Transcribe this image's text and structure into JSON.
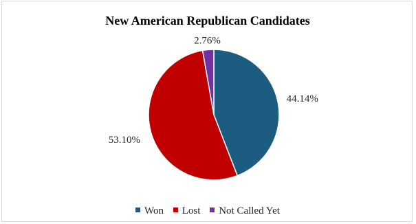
{
  "chart_data": {
    "type": "pie",
    "title": "New American Republican Candidates",
    "categories": [
      "Won",
      "Lost",
      "Not Called Yet"
    ],
    "values": [
      44.14,
      53.1,
      2.76
    ],
    "labels": [
      "44.14%",
      "53.10%",
      "2.76%"
    ],
    "colors": [
      "#1b5c80",
      "#c00000",
      "#7030a0"
    ],
    "legend_position": "bottom"
  }
}
